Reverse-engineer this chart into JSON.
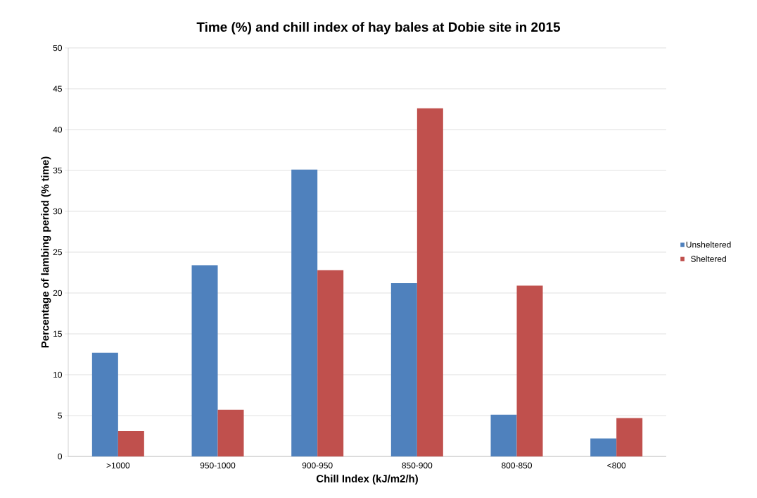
{
  "chart_data": {
    "type": "bar",
    "title": "Time (%) and chill index of hay bales at Dobie site in 2015",
    "xlabel": "Chill Index (kJ/m2/h)",
    "ylabel": "Percentage of lambing period (% time)",
    "categories": [
      ">1000",
      "950-1000",
      "900-950",
      "850-900",
      "800-850",
      "<800"
    ],
    "series": [
      {
        "name": "Unsheltered",
        "color": "#4f81bd",
        "values": [
          12.7,
          23.4,
          35.1,
          21.2,
          5.1,
          2.2
        ]
      },
      {
        "name": "Sheltered",
        "color": "#c0504d",
        "values": [
          3.1,
          5.7,
          22.8,
          42.6,
          20.9,
          4.7
        ]
      }
    ],
    "ylim": [
      0,
      50
    ],
    "yticks": [
      0,
      5,
      10,
      15,
      20,
      25,
      30,
      35,
      40,
      45,
      50
    ],
    "grid": "y",
    "legend": "right"
  }
}
